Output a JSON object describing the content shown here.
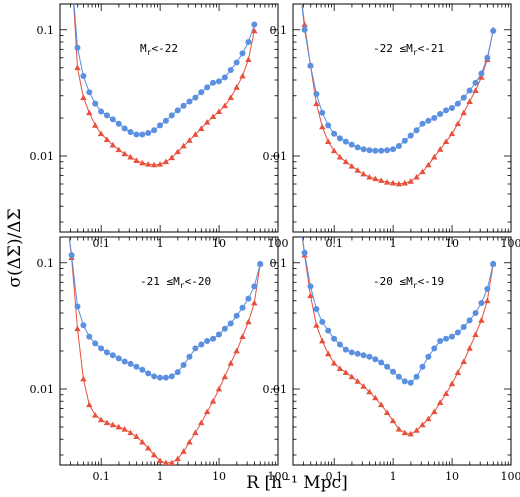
{
  "figure": {
    "xlabel": "R [h⁻¹ Mpc]",
    "ylabel": "σ(ΔΣ)/ΔΣ"
  },
  "chart_data": [
    {
      "type": "line",
      "label": "Mr<-22",
      "label_parts": {
        "pre": "M",
        "sub": "r",
        "post": "<-22"
      },
      "xscale": "log",
      "yscale": "log",
      "xlim": [
        0.02,
        100
      ],
      "ylim": [
        0.0025,
        0.16
      ],
      "x_ticks": [
        "0.1",
        "1",
        "10",
        "100"
      ],
      "y_ticks": [
        "0.01",
        "0.1"
      ],
      "color_blue": "#5b8fe0",
      "color_red": "#e8503c",
      "x": [
        0.0396,
        0.0499,
        0.0628,
        0.0791,
        0.0996,
        0.1253,
        0.1578,
        0.1986,
        0.25,
        0.3148,
        0.3963,
        0.4989,
        0.6281,
        0.7907,
        0.9955,
        1.2533,
        1.5778,
        1.9863,
        2.5007,
        3.1482,
        3.9634,
        4.9897,
        6.2817,
        7.9083,
        9.9561,
        12.534,
        15.78,
        19.865,
        25.009,
        31.485,
        39.637
      ],
      "series": [
        {
          "values": [
            0.072,
            0.043,
            0.032,
            0.026,
            0.0225,
            0.021,
            0.0195,
            0.018,
            0.0165,
            0.0155,
            0.0148,
            0.0148,
            0.0152,
            0.016,
            0.0175,
            0.019,
            0.021,
            0.023,
            0.025,
            0.027,
            0.029,
            0.032,
            0.035,
            0.038,
            0.039,
            0.042,
            0.048,
            0.055,
            0.065,
            0.08,
            0.11
          ]
        },
        {
          "values": [
            0.05,
            0.029,
            0.022,
            0.0175,
            0.015,
            0.0135,
            0.0122,
            0.0112,
            0.0104,
            0.0098,
            0.0092,
            0.0088,
            0.0086,
            0.0085,
            0.0086,
            0.009,
            0.0097,
            0.0108,
            0.012,
            0.0133,
            0.0148,
            0.0165,
            0.0185,
            0.0205,
            0.0225,
            0.025,
            0.029,
            0.035,
            0.043,
            0.058,
            0.098
          ]
        }
      ]
    },
    {
      "type": "line",
      "label": "-22 ≤Mr<-21",
      "label_parts": {
        "pre": "-22 ≤M",
        "sub": "r",
        "post": "<-21"
      },
      "xscale": "log",
      "yscale": "log",
      "xlim": [
        0.02,
        100
      ],
      "ylim": [
        0.0025,
        0.16
      ],
      "x_ticks": [
        "0.1",
        "1",
        "10",
        "100"
      ],
      "y_ticks": [
        "0.01",
        "0.1"
      ],
      "color_blue": "#5b8fe0",
      "color_red": "#e8503c",
      "x": [
        0.0315,
        0.0396,
        0.0499,
        0.0628,
        0.0791,
        0.0996,
        0.1253,
        0.1578,
        0.1986,
        0.25,
        0.3148,
        0.3963,
        0.4989,
        0.6281,
        0.7907,
        0.9955,
        1.2533,
        1.5778,
        1.9863,
        2.5007,
        3.1482,
        3.9634,
        4.9897,
        6.2817,
        7.9083,
        9.9561,
        12.534,
        15.78,
        19.865,
        25.009,
        31.485,
        39.637,
        49.9
      ],
      "series": [
        {
          "values": [
            0.1,
            0.052,
            0.031,
            0.022,
            0.0175,
            0.015,
            0.0138,
            0.013,
            0.0123,
            0.0117,
            0.0113,
            0.0111,
            0.011,
            0.011,
            0.0111,
            0.0113,
            0.012,
            0.0132,
            0.0145,
            0.016,
            0.018,
            0.019,
            0.02,
            0.0215,
            0.023,
            0.024,
            0.026,
            0.029,
            0.033,
            0.038,
            0.045,
            0.06,
            0.098
          ]
        },
        {
          "values": [
            0.11,
            0.052,
            0.026,
            0.017,
            0.013,
            0.011,
            0.0098,
            0.009,
            0.0083,
            0.0077,
            0.0072,
            0.0068,
            0.0066,
            0.0064,
            0.0062,
            0.0061,
            0.006,
            0.0061,
            0.0063,
            0.0068,
            0.0075,
            0.0085,
            0.0098,
            0.0113,
            0.013,
            0.015,
            0.018,
            0.022,
            0.027,
            0.033,
            0.042,
            0.058,
            0.1
          ]
        }
      ]
    },
    {
      "type": "line",
      "label": "-21 ≤Mr<-20",
      "label_parts": {
        "pre": "-21 ≤M",
        "sub": "r",
        "post": "<-20"
      },
      "xscale": "log",
      "yscale": "log",
      "xlim": [
        0.02,
        100
      ],
      "ylim": [
        0.0025,
        0.16
      ],
      "x_ticks": [
        "0.1",
        "1",
        "10",
        "100"
      ],
      "y_ticks": [
        "0.01",
        "0.1"
      ],
      "color_blue": "#5b8fe0",
      "color_red": "#e8503c",
      "x": [
        0.0315,
        0.0396,
        0.0499,
        0.0628,
        0.0791,
        0.0996,
        0.1253,
        0.1578,
        0.1986,
        0.25,
        0.3148,
        0.3963,
        0.4989,
        0.6281,
        0.7907,
        0.9955,
        1.2533,
        1.5778,
        1.9863,
        2.5007,
        3.1482,
        3.9634,
        4.9897,
        6.2817,
        7.9083,
        9.9561,
        12.534,
        15.78,
        19.865,
        25.009,
        31.485,
        39.637,
        49.9
      ],
      "series": [
        {
          "values": [
            0.115,
            0.045,
            0.032,
            0.026,
            0.023,
            0.021,
            0.0195,
            0.0185,
            0.0175,
            0.0165,
            0.0158,
            0.015,
            0.0142,
            0.0133,
            0.0126,
            0.0123,
            0.0123,
            0.0126,
            0.0136,
            0.0155,
            0.018,
            0.021,
            0.0225,
            0.024,
            0.025,
            0.027,
            0.03,
            0.033,
            0.038,
            0.044,
            0.052,
            0.065,
            0.098
          ]
        },
        {
          "values": [
            0.11,
            0.03,
            0.012,
            0.0075,
            0.0062,
            0.0057,
            0.0054,
            0.0052,
            0.005,
            0.0048,
            0.0045,
            0.0042,
            0.0038,
            0.0034,
            0.003,
            0.0027,
            0.0026,
            0.0026,
            0.0028,
            0.0032,
            0.0038,
            0.0045,
            0.0054,
            0.0066,
            0.008,
            0.01,
            0.0125,
            0.016,
            0.02,
            0.026,
            0.034,
            0.048,
            0.098
          ]
        }
      ]
    },
    {
      "type": "line",
      "label": "-20 ≤Mr<-19",
      "label_parts": {
        "pre": "-20 ≤M",
        "sub": "r",
        "post": "<-19"
      },
      "xscale": "log",
      "yscale": "log",
      "xlim": [
        0.02,
        100
      ],
      "ylim": [
        0.0025,
        0.16
      ],
      "x_ticks": [
        "0.1",
        "1",
        "10",
        "100"
      ],
      "y_ticks": [
        "0.01",
        "0.1"
      ],
      "color_blue": "#5b8fe0",
      "color_red": "#e8503c",
      "x": [
        0.0315,
        0.0396,
        0.0499,
        0.0628,
        0.0791,
        0.0996,
        0.1253,
        0.1578,
        0.1986,
        0.25,
        0.3148,
        0.3963,
        0.4989,
        0.6281,
        0.7907,
        0.9955,
        1.2533,
        1.5778,
        1.9863,
        2.5007,
        3.1482,
        3.9634,
        4.9897,
        6.2817,
        7.9083,
        9.9561,
        12.534,
        15.78,
        19.865,
        25.009,
        31.485,
        39.637,
        49.9
      ],
      "series": [
        {
          "values": [
            0.12,
            0.065,
            0.043,
            0.034,
            0.029,
            0.025,
            0.0225,
            0.0205,
            0.0195,
            0.019,
            0.0185,
            0.018,
            0.0172,
            0.0162,
            0.015,
            0.0137,
            0.0125,
            0.0115,
            0.0112,
            0.0125,
            0.015,
            0.018,
            0.021,
            0.024,
            0.025,
            0.026,
            0.028,
            0.031,
            0.035,
            0.04,
            0.048,
            0.062,
            0.098
          ]
        },
        {
          "values": [
            0.115,
            0.055,
            0.032,
            0.024,
            0.019,
            0.016,
            0.0145,
            0.0135,
            0.0125,
            0.0115,
            0.0105,
            0.0095,
            0.0085,
            0.0075,
            0.0065,
            0.0056,
            0.0048,
            0.0045,
            0.0044,
            0.0047,
            0.0052,
            0.0058,
            0.0066,
            0.0078,
            0.0092,
            0.011,
            0.0135,
            0.0165,
            0.021,
            0.027,
            0.035,
            0.05,
            0.098
          ]
        }
      ]
    }
  ]
}
